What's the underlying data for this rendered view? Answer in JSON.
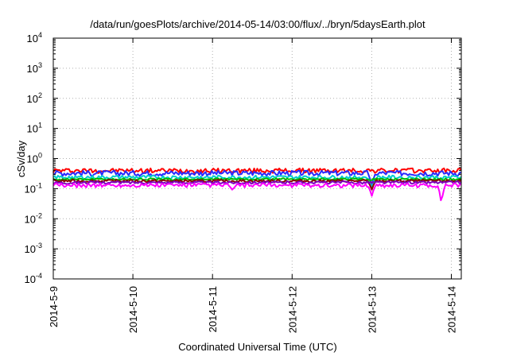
{
  "chart_data": {
    "type": "line",
    "title": "/data/run/goesPlots/archive/2014-05-14/03:00/flux/../bryn/5daysEarth.plot",
    "xlabel": "Coordinated Universal Time (UTC)",
    "ylabel": "cSv/day",
    "yscale": "log",
    "ylim": [
      0.0001,
      10000
    ],
    "xlim": [
      "2014-05-09",
      "2014-05-14 03:00"
    ],
    "grid": true,
    "x_tick_labels": [
      "2014-5-9",
      "2014-5-10",
      "2014-5-11",
      "2014-5-12",
      "2014-5-13",
      "2014-5-14"
    ],
    "y_tick_labels": [
      {
        "base": "10",
        "exp": "-4"
      },
      {
        "base": "10",
        "exp": "-3"
      },
      {
        "base": "10",
        "exp": "-2"
      },
      {
        "base": "10",
        "exp": "-1"
      },
      {
        "base": "10",
        "exp": "0"
      },
      {
        "base": "10",
        "exp": "1"
      },
      {
        "base": "10",
        "exp": "2"
      },
      {
        "base": "10",
        "exp": "3"
      },
      {
        "base": "10",
        "exp": "4"
      }
    ],
    "series": [
      {
        "color": "#ff0000",
        "level": 0.4,
        "amp": 0.18,
        "dips": []
      },
      {
        "color": "#2a2aff",
        "level": 0.33,
        "amp": 0.2,
        "dips": [
          {
            "x": "2014-05-13",
            "v": 0.12
          }
        ]
      },
      {
        "color": "#00cccc",
        "level": 0.24,
        "amp": 0.14,
        "dips": [
          {
            "x": "2014-05-13",
            "v": 0.1
          }
        ]
      },
      {
        "color": "#00bb00",
        "level": 0.205,
        "amp": 0.08,
        "dips": []
      },
      {
        "color": "#8b0000",
        "level": 0.18,
        "amp": 0.1,
        "dips": [
          {
            "x": "2014-05-13",
            "v": 0.09
          }
        ]
      },
      {
        "color": "#7b00bb",
        "level": 0.16,
        "amp": 0.1,
        "dips": []
      },
      {
        "color": "#ff00ff",
        "level": 0.13,
        "amp": 0.16,
        "dips": [
          {
            "x": "2014-05-13",
            "v": 0.055
          },
          {
            "x": "2014-05-13 21:00",
            "v": 0.028
          },
          {
            "x": "2014-05-11 06:00",
            "v": 0.09
          }
        ]
      }
    ]
  }
}
